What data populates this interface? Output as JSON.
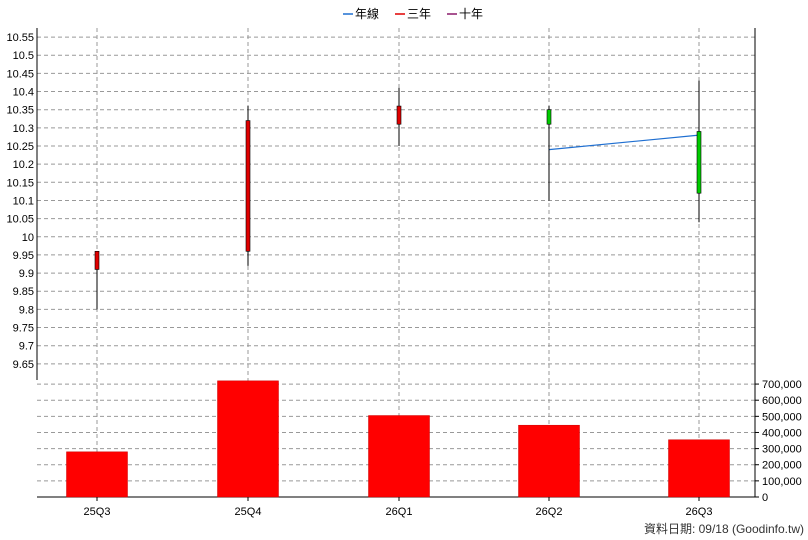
{
  "chart_data": {
    "type": "candlestick",
    "legend": {
      "placement": "top-center",
      "items": [
        {
          "name": "年線",
          "color": "#1f6fd1"
        },
        {
          "name": "三年",
          "color": "#e00000"
        },
        {
          "name": "十年",
          "color": "#8b1a6b"
        }
      ]
    },
    "categories": [
      "25Q3",
      "25Q4",
      "26Q1",
      "26Q2",
      "26Q3"
    ],
    "price": {
      "ylim": [
        9.6,
        10.575
      ],
      "ticks": [
        9.65,
        9.7,
        9.75,
        9.8,
        9.85,
        9.9,
        9.95,
        10,
        10.05,
        10.1,
        10.15,
        10.2,
        10.25,
        10.3,
        10.35,
        10.4,
        10.45,
        10.5,
        10.55
      ],
      "tick_labels": [
        "9.65",
        "9.7",
        "9.75",
        "9.8",
        "9.85",
        "9.9",
        "9.95",
        "10",
        "10.05",
        "10.1",
        "10.15",
        "10.2",
        "10.25",
        "10.3",
        "10.35",
        "10.4",
        "10.45",
        "10.5",
        "10.55"
      ],
      "candles": [
        {
          "open": 9.91,
          "high": 9.96,
          "low": 9.8,
          "close": 9.96,
          "color": "#e00000"
        },
        {
          "open": 9.96,
          "high": 10.36,
          "low": 9.92,
          "close": 10.32,
          "color": "#e00000"
        },
        {
          "open": 10.31,
          "high": 10.41,
          "low": 10.25,
          "close": 10.36,
          "color": "#e00000"
        },
        {
          "open": 10.35,
          "high": 10.36,
          "low": 10.1,
          "close": 10.31,
          "color": "#00cc00"
        },
        {
          "open": 10.29,
          "high": 10.43,
          "low": 10.04,
          "close": 10.12,
          "color": "#00cc00"
        }
      ],
      "annual_line": {
        "name": "年線",
        "color": "#1f6fd1",
        "points": [
          {
            "x": "26Q2",
            "y": 10.24
          },
          {
            "x": "26Q3",
            "y": 10.28
          }
        ]
      }
    },
    "volume": {
      "ylim": [
        0,
        750000
      ],
      "ticks": [
        0,
        100000,
        200000,
        300000,
        400000,
        500000,
        600000,
        700000
      ],
      "tick_labels": [
        "0",
        "100,000",
        "200,000",
        "300,000",
        "400,000",
        "500,000",
        "600,000",
        "700,000"
      ],
      "values": [
        280000,
        720000,
        505000,
        445000,
        355000
      ],
      "color": "#ff0000"
    },
    "grid": true
  },
  "footer": {
    "text": "資料日期: 09/18  (Goodinfo.tw)"
  }
}
